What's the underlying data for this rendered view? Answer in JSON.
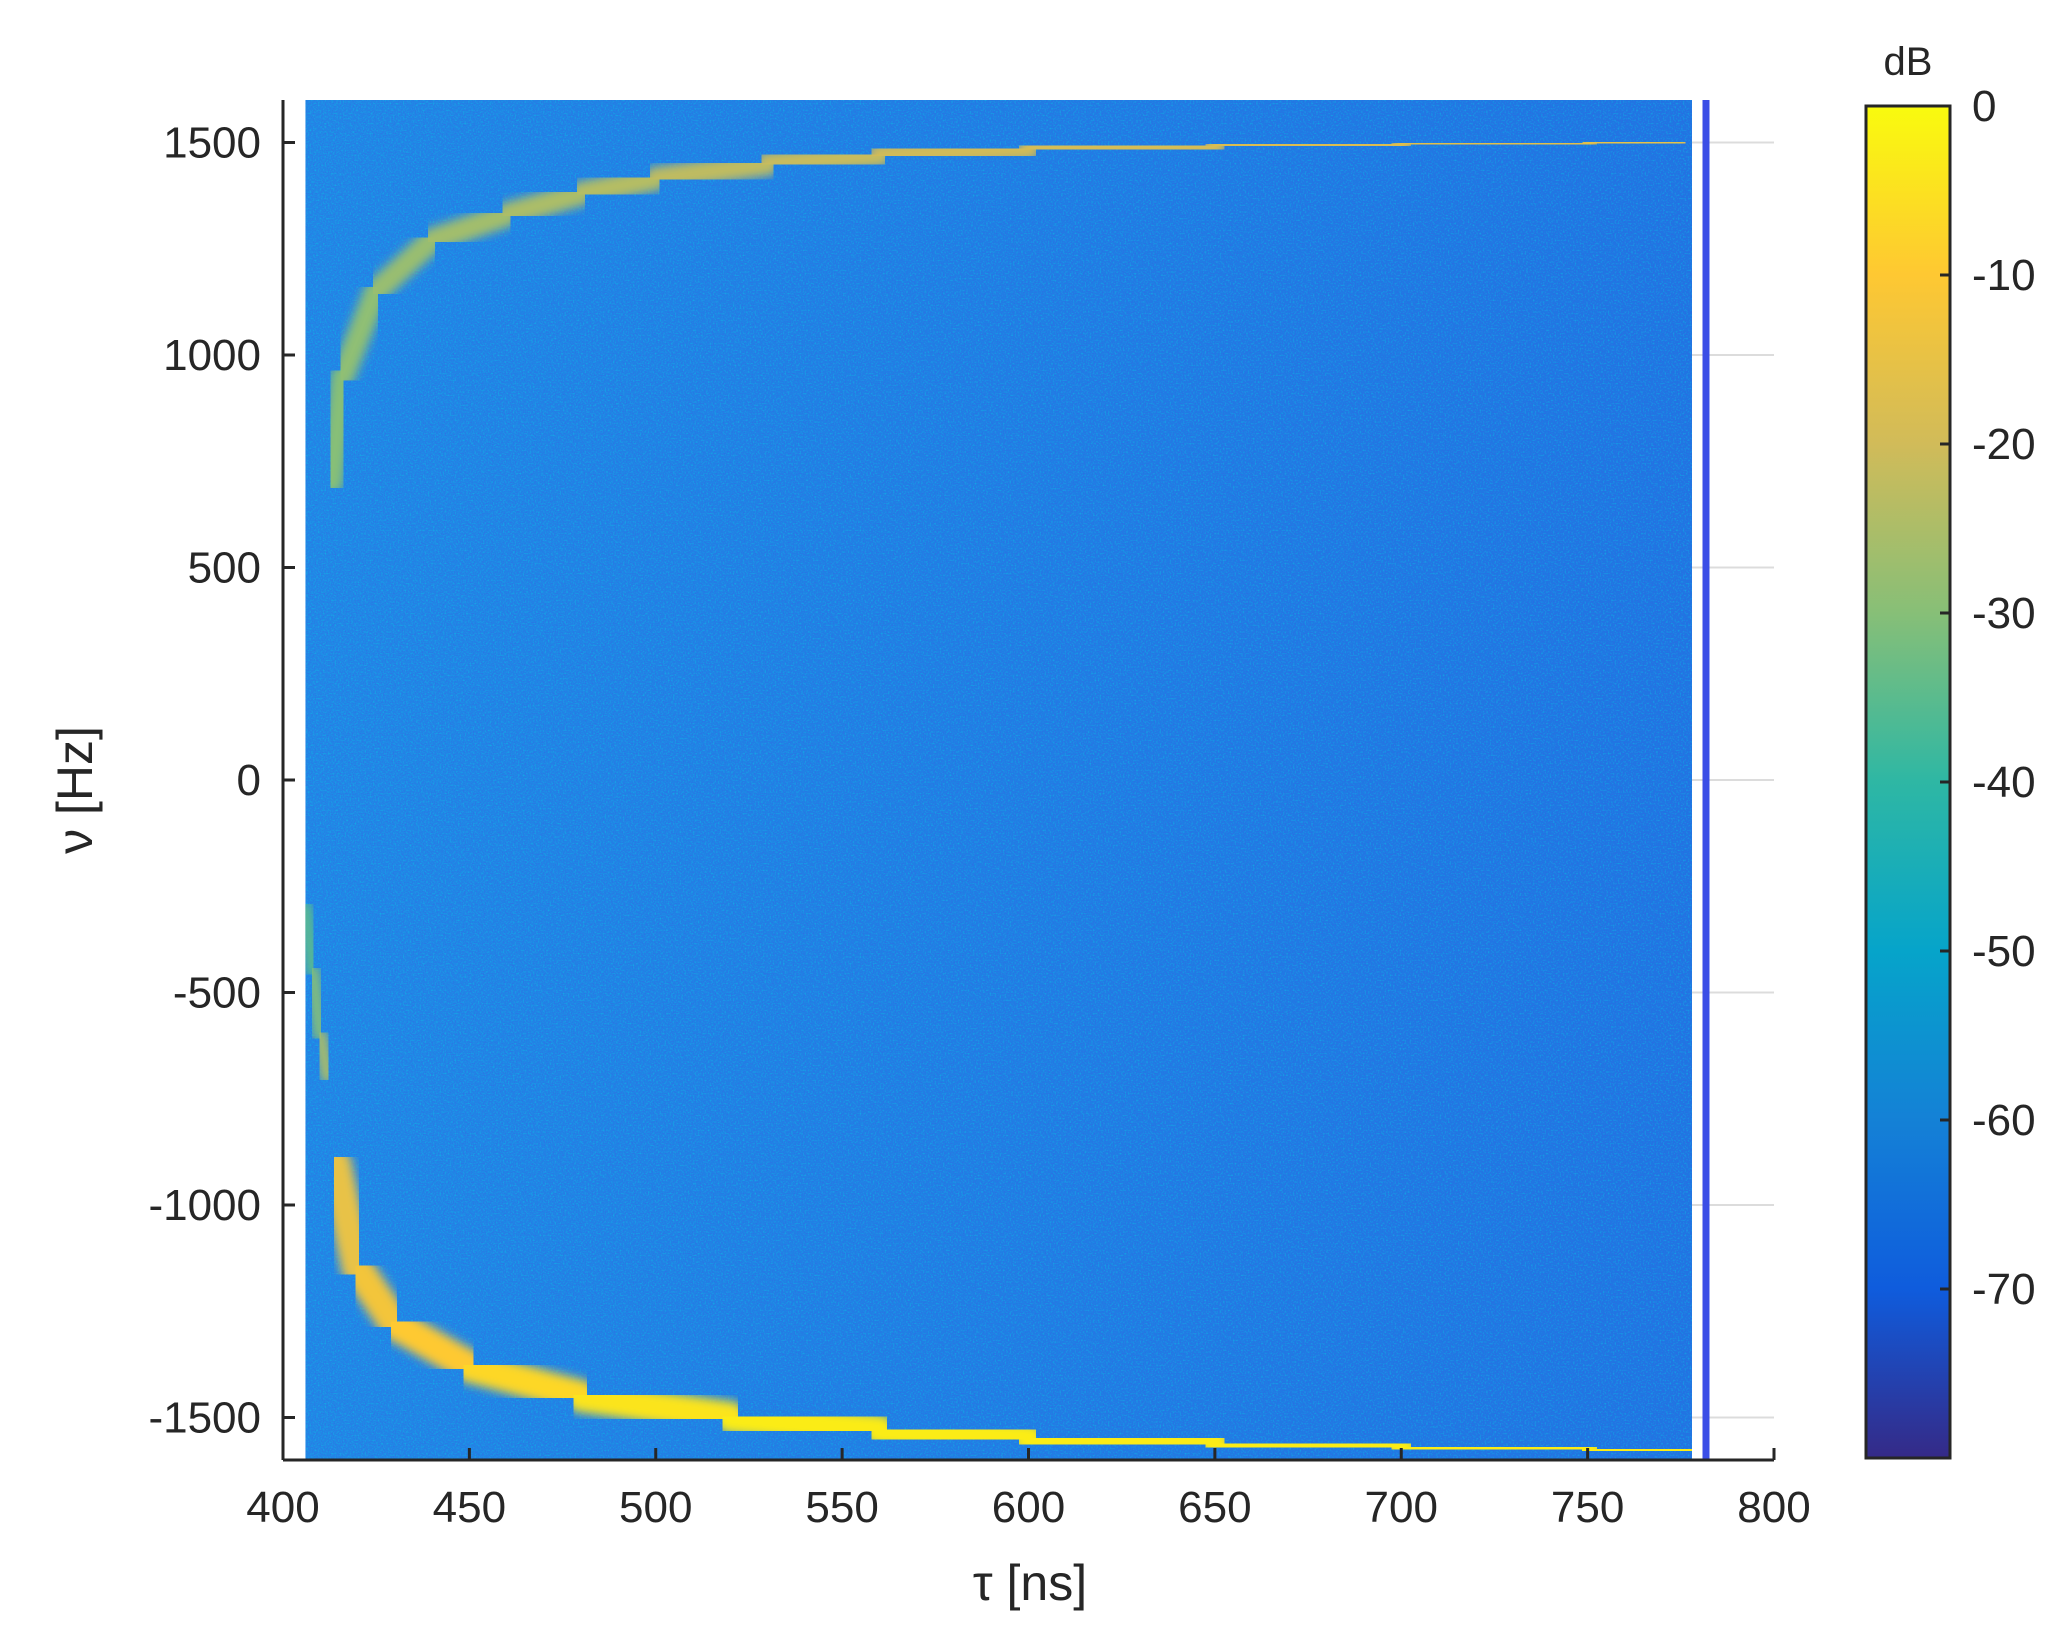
{
  "chart_data": {
    "type": "heatmap",
    "title": "",
    "xlabel": "τ [ns]",
    "ylabel": "ν [Hz]",
    "xlim": [
      400,
      800
    ],
    "ylim": [
      -1600,
      1600
    ],
    "data_extent": {
      "x": [
        406,
        778
      ],
      "y": [
        -1600,
        1600
      ]
    },
    "xticks": [
      400,
      450,
      500,
      550,
      600,
      650,
      700,
      750,
      800
    ],
    "yticks": [
      -1500,
      -1000,
      -500,
      0,
      500,
      1000,
      1500
    ],
    "xtick_labels": [
      "400",
      "450",
      "500",
      "550",
      "600",
      "650",
      "700",
      "750",
      "800"
    ],
    "ytick_labels": [
      "-1500",
      "-1000",
      "-500",
      "0",
      "500",
      "1000",
      "1500"
    ],
    "grid": true,
    "colormap": "parula",
    "colorbar": {
      "title": "dB",
      "range": [
        -80,
        0
      ],
      "ticks": [
        0,
        -10,
        -20,
        -30,
        -40,
        -50,
        -60,
        -70
      ],
      "tick_labels": [
        "0",
        "-10",
        "-20",
        "-30",
        "-40",
        "-50",
        "-60",
        "-70"
      ]
    },
    "background_level_db": -53,
    "features": [
      {
        "name": "upper branch",
        "level_db": [
          -30,
          -15
        ],
        "points": [
          [
            413,
            700
          ],
          [
            416,
            950
          ],
          [
            425,
            1150
          ],
          [
            440,
            1270
          ],
          [
            460,
            1330
          ],
          [
            480,
            1380
          ],
          [
            500,
            1415
          ],
          [
            530,
            1450
          ],
          [
            560,
            1470
          ],
          [
            600,
            1485
          ],
          [
            650,
            1492
          ],
          [
            700,
            1496
          ],
          [
            750,
            1498
          ],
          [
            775,
            1500
          ]
        ]
      },
      {
        "name": "lower branch",
        "level_db": [
          -15,
          -3
        ],
        "points": [
          [
            414,
            -900
          ],
          [
            420,
            -1150
          ],
          [
            430,
            -1280
          ],
          [
            450,
            -1380
          ],
          [
            480,
            -1450
          ],
          [
            520,
            -1500
          ],
          [
            560,
            -1530
          ],
          [
            600,
            -1550
          ],
          [
            650,
            -1562
          ],
          [
            700,
            -1570
          ],
          [
            750,
            -1575
          ],
          [
            778,
            -1578
          ]
        ]
      },
      {
        "name": "edge segment",
        "level_db": [
          -35,
          -25
        ],
        "points": [
          [
            406,
            -300
          ],
          [
            408,
            -450
          ],
          [
            410,
            -600
          ],
          [
            412,
            -700
          ]
        ]
      }
    ],
    "annotations": []
  }
}
